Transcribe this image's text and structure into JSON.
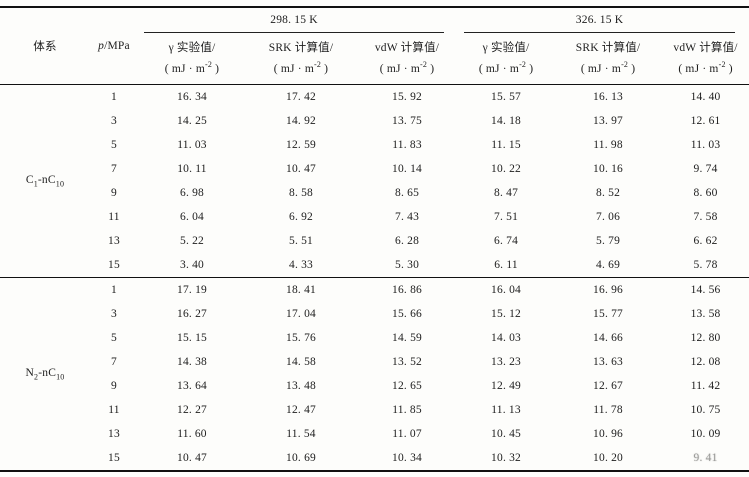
{
  "table": {
    "col_system": "体系",
    "col_pressure": {
      "italic": "p",
      "rest": "/MPa"
    },
    "temps": [
      "298. 15 K",
      "326. 15 K"
    ],
    "measure_headers": [
      "γ 实验值/",
      "SRK 计算值/",
      "vdW 计算值/"
    ],
    "unit": {
      "pre": "( mJ · m",
      "sup": "-2",
      "post": " )"
    },
    "groups": [
      {
        "label": {
          "a": "C",
          "a_sub": "1",
          "b": "-nC",
          "b_sub": "10"
        },
        "rows": [
          {
            "p": "1",
            "values": [
              "16. 34",
              "17. 42",
              "15. 92",
              "15. 57",
              "16. 13",
              "14. 40"
            ]
          },
          {
            "p": "3",
            "values": [
              "14. 25",
              "14. 92",
              "13. 75",
              "14. 18",
              "13. 97",
              "12. 61"
            ]
          },
          {
            "p": "5",
            "values": [
              "11. 03",
              "12. 59",
              "11. 83",
              "11. 15",
              "11. 98",
              "11. 03"
            ]
          },
          {
            "p": "7",
            "values": [
              "10. 11",
              "10. 47",
              "10. 14",
              "10. 22",
              "10. 16",
              "9. 74"
            ]
          },
          {
            "p": "9",
            "values": [
              "6. 98",
              "8. 58",
              "8. 65",
              "8. 47",
              "8. 52",
              "8. 60"
            ]
          },
          {
            "p": "11",
            "values": [
              "6. 04",
              "6. 92",
              "7. 43",
              "7. 51",
              "7. 06",
              "7. 58"
            ]
          },
          {
            "p": "13",
            "values": [
              "5. 22",
              "5. 51",
              "6. 28",
              "6. 74",
              "5. 79",
              "6. 62"
            ]
          },
          {
            "p": "15",
            "values": [
              "3. 40",
              "4. 33",
              "5. 30",
              "6. 11",
              "4. 69",
              "5. 78"
            ]
          }
        ]
      },
      {
        "label": {
          "a": "N",
          "a_sub": "2",
          "b": "-nC",
          "b_sub": "10"
        },
        "rows": [
          {
            "p": "1",
            "values": [
              "17. 19",
              "18. 41",
              "16. 86",
              "16. 04",
              "16. 96",
              "14. 56"
            ]
          },
          {
            "p": "3",
            "values": [
              "16. 27",
              "17. 04",
              "15. 66",
              "15. 12",
              "15. 77",
              "13. 58"
            ]
          },
          {
            "p": "5",
            "values": [
              "15. 15",
              "15. 76",
              "14. 59",
              "14. 03",
              "14. 66",
              "12. 80"
            ]
          },
          {
            "p": "7",
            "values": [
              "14. 38",
              "14. 58",
              "13. 52",
              "13. 23",
              "13. 63",
              "12. 08"
            ]
          },
          {
            "p": "9",
            "values": [
              "13. 64",
              "13. 48",
              "12. 65",
              "12. 49",
              "12. 67",
              "11. 42"
            ]
          },
          {
            "p": "11",
            "values": [
              "12. 27",
              "12. 47",
              "11. 85",
              "11. 13",
              "11. 78",
              "10. 75"
            ]
          },
          {
            "p": "13",
            "values": [
              "11. 60",
              "11. 54",
              "11. 07",
              "10. 45",
              "10. 96",
              "10. 09"
            ]
          },
          {
            "p": "15",
            "values": [
              "10. 47",
              "10. 69",
              "10. 34",
              "10. 32",
              "10. 20",
              "9. 41"
            ]
          }
        ]
      }
    ]
  }
}
